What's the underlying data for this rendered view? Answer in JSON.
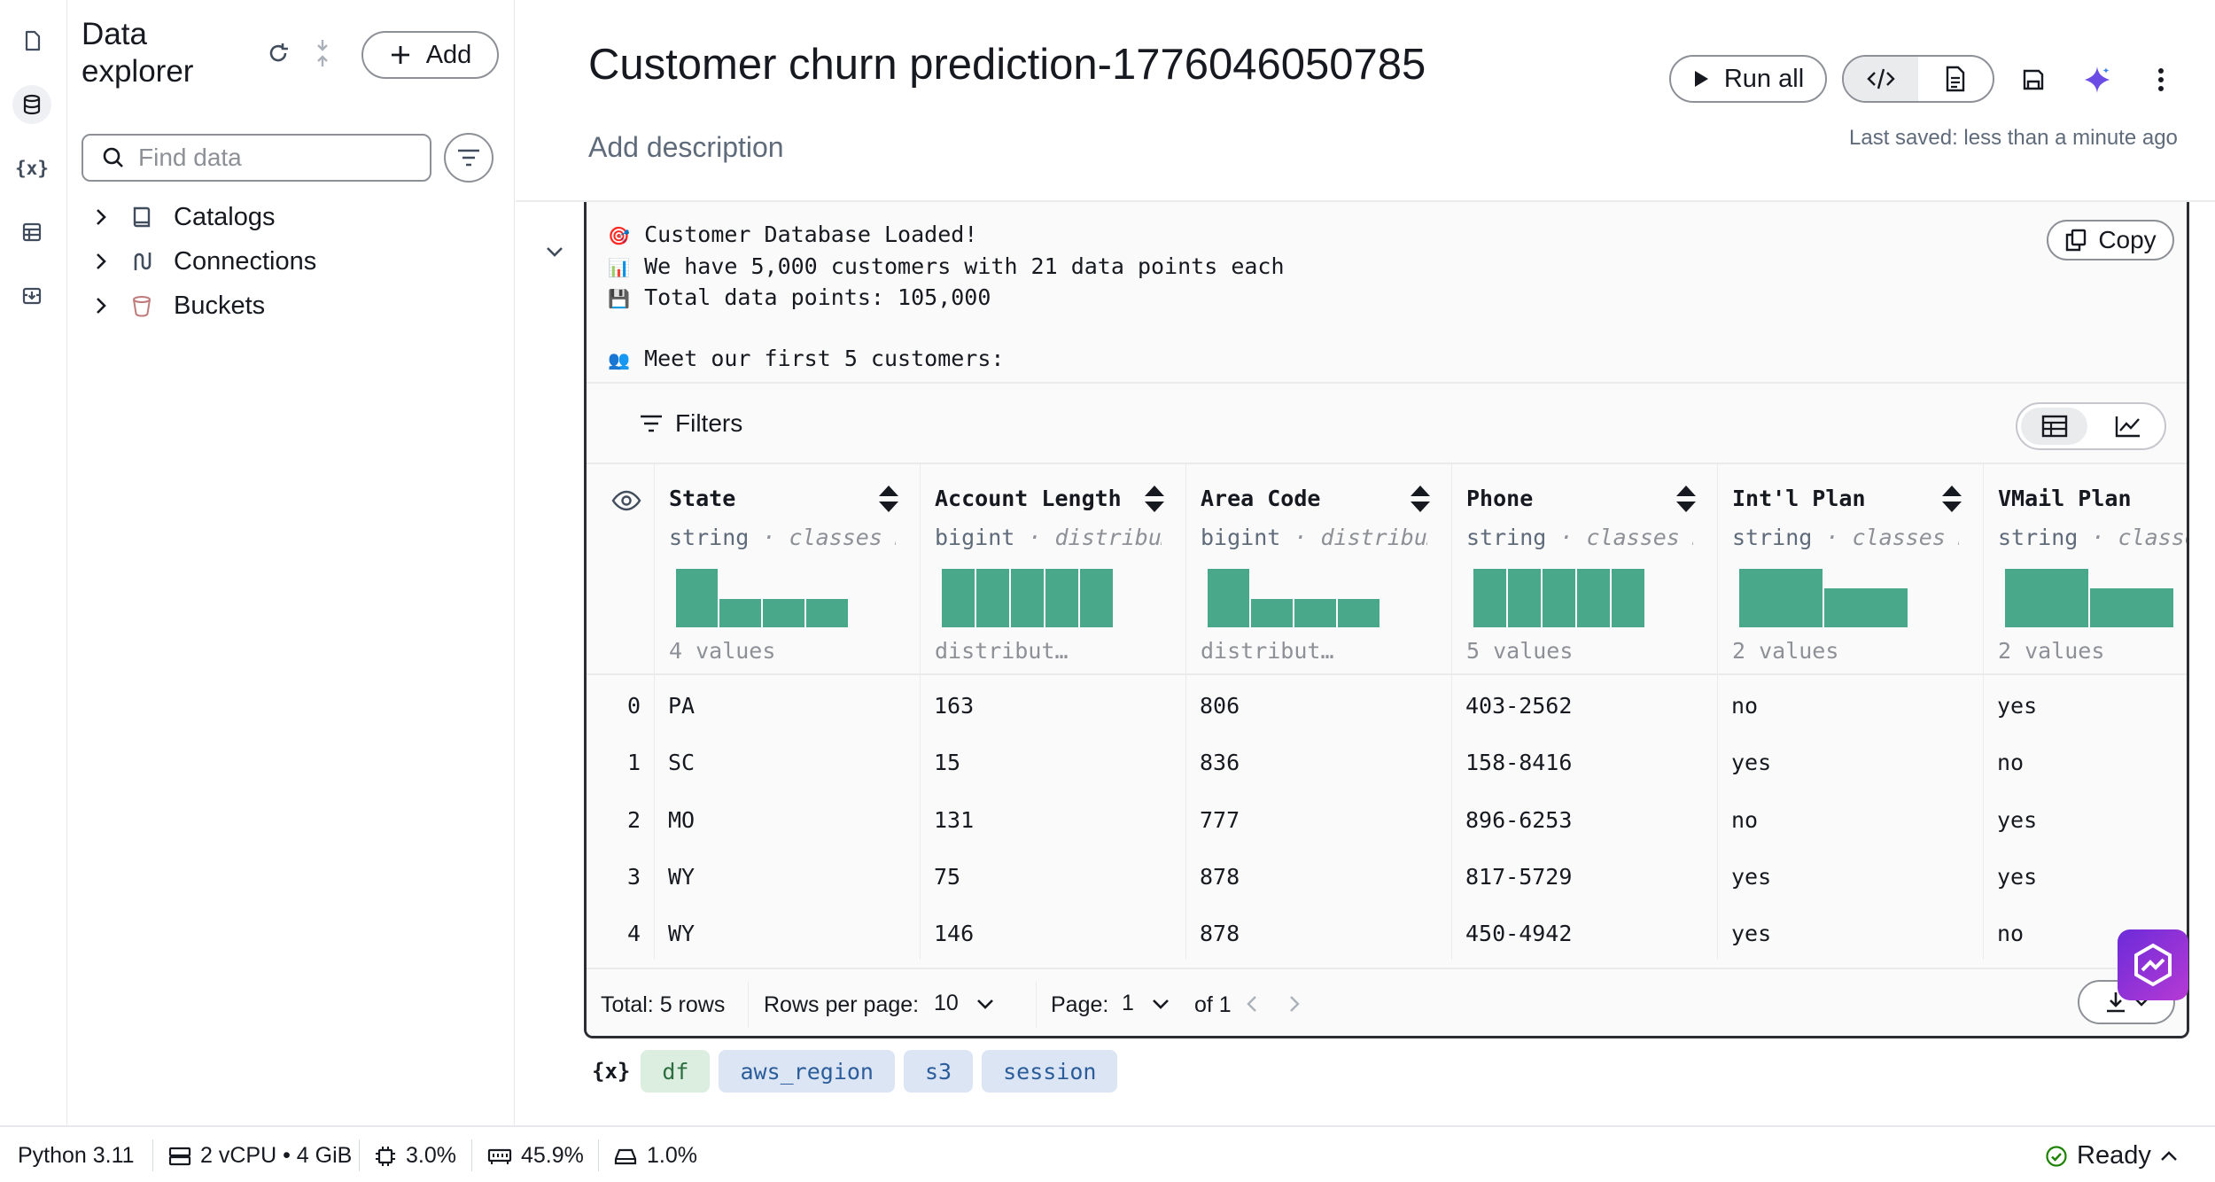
{
  "rail": {
    "items": [
      "file-icon",
      "database-icon",
      "variables-icon",
      "table-icon",
      "inbox-icon"
    ],
    "variables_label": "{x}"
  },
  "explorer": {
    "title": "Data explorer",
    "add_label": "Add",
    "search_placeholder": "Find data",
    "tree": [
      {
        "label": "Catalogs",
        "icon": "book-icon"
      },
      {
        "label": "Connections",
        "icon": "connection-icon"
      },
      {
        "label": "Buckets",
        "icon": "bucket-icon"
      }
    ]
  },
  "header": {
    "title": "Customer churn prediction-1776046050785",
    "description_placeholder": "Add description",
    "run_all_label": "Run all",
    "last_saved": "Last saved: less than a minute ago"
  },
  "output": {
    "copy_label": "Copy",
    "lines": [
      {
        "emoji": "🎯",
        "text": "Customer Database Loaded!"
      },
      {
        "emoji": "📊",
        "text": "We have 5,000 customers with 21 data points each"
      },
      {
        "emoji": "💾",
        "text": "Total data points: 105,000"
      },
      {
        "emoji": "",
        "text": ""
      },
      {
        "emoji": "👥",
        "text": "Meet our first 5 customers:"
      }
    ],
    "filters_label": "Filters",
    "columns": [
      {
        "name": "State",
        "type": "string",
        "meta": "classes …",
        "footer": "4 values",
        "hist": [
          1.0,
          0.48,
          0.48,
          0.48
        ]
      },
      {
        "name": "Account Length",
        "type": "bigint",
        "meta": "distribu…",
        "footer": "distribut…",
        "hist": [
          1.0,
          1.0,
          1.0,
          1.0,
          1.0
        ]
      },
      {
        "name": "Area Code",
        "type": "bigint",
        "meta": "distribu…",
        "footer": "distribut…",
        "hist": [
          1.0,
          0.48,
          0.48,
          0.48
        ]
      },
      {
        "name": "Phone",
        "type": "string",
        "meta": "classes …",
        "footer": "5 values",
        "hist": [
          1.0,
          1.0,
          1.0,
          1.0,
          1.0
        ]
      },
      {
        "name": "Int'l Plan",
        "type": "string",
        "meta": "classes …",
        "footer": "2 values",
        "hist": [
          1.0,
          0.66
        ]
      },
      {
        "name": "VMail Plan",
        "type": "string",
        "meta": "classes",
        "footer": "2 values",
        "hist": [
          1.0,
          0.66
        ]
      }
    ],
    "rows": [
      {
        "idx": "0",
        "values": [
          "PA",
          "163",
          "806",
          "403-2562",
          "no",
          "yes"
        ]
      },
      {
        "idx": "1",
        "values": [
          "SC",
          "15",
          "836",
          "158-8416",
          "yes",
          "no"
        ]
      },
      {
        "idx": "2",
        "values": [
          "MO",
          "131",
          "777",
          "896-6253",
          "no",
          "yes"
        ]
      },
      {
        "idx": "3",
        "values": [
          "WY",
          "75",
          "878",
          "817-5729",
          "yes",
          "yes"
        ]
      },
      {
        "idx": "4",
        "values": [
          "WY",
          "146",
          "878",
          "450-4942",
          "yes",
          "no"
        ]
      }
    ],
    "pager": {
      "total": "Total: 5 rows",
      "rows_per_page_label": "Rows per page:",
      "rows_per_page": "10",
      "page_label": "Page:",
      "page": "1",
      "of": "of 1"
    }
  },
  "variables": {
    "label": "{x}",
    "chips": [
      {
        "name": "df",
        "color": "green"
      },
      {
        "name": "aws_region",
        "color": "blue"
      },
      {
        "name": "s3",
        "color": "blue"
      },
      {
        "name": "session",
        "color": "blue"
      }
    ]
  },
  "status": {
    "kernel": "Python 3.11",
    "instance": "2 vCPU • 4 GiB",
    "cpu": "3.0%",
    "memory": "45.9%",
    "disk": "1.0%",
    "state": "Ready"
  },
  "colors": {
    "histogram": "#4aa88a",
    "accent": "#16191f",
    "ready": "#1d8102"
  }
}
